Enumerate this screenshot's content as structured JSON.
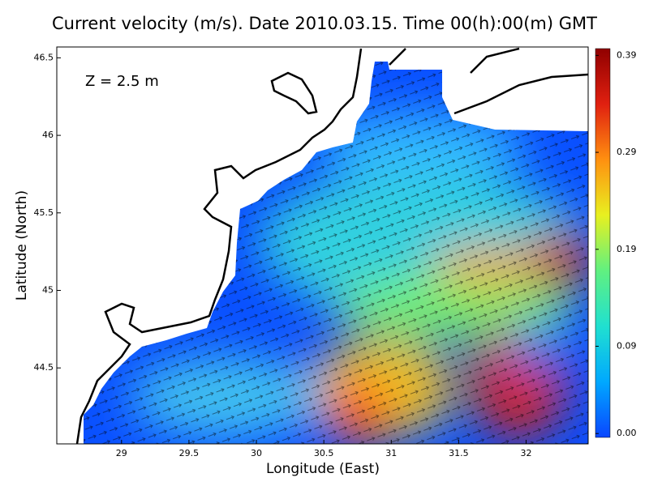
{
  "chart_data": {
    "type": "vector-field",
    "title": "Current velocity (m/s). Date 2010.03.15. Time 00(h):00(m) GMT",
    "annotation": "Z = 2.5 m",
    "xlabel": "Longitude (East)",
    "ylabel": "Latitude (North)",
    "xlim": [
      28.52,
      32.46
    ],
    "ylim": [
      44.01,
      46.57
    ],
    "xticks": [
      29,
      29.5,
      30,
      30.5,
      31,
      31.5,
      32
    ],
    "yticks": [
      44.5,
      45,
      45.5,
      46,
      46.5
    ],
    "colorbar": {
      "lim": [
        -0.004,
        0.397
      ],
      "ticks": [
        {
          "value": 0,
          "label": "0.00"
        },
        {
          "value": 0.09,
          "label": "0.09"
        },
        {
          "value": 0.19,
          "label": "0.19"
        },
        {
          "value": 0.29,
          "label": "0.29"
        },
        {
          "value": 0.39,
          "label": "0.39"
        }
      ],
      "colors": [
        "#0a46ff",
        "#00a8ff",
        "#20e0d0",
        "#60f080",
        "#e8f020",
        "#ff9010",
        "#e02010",
        "#900000"
      ]
    }
  }
}
